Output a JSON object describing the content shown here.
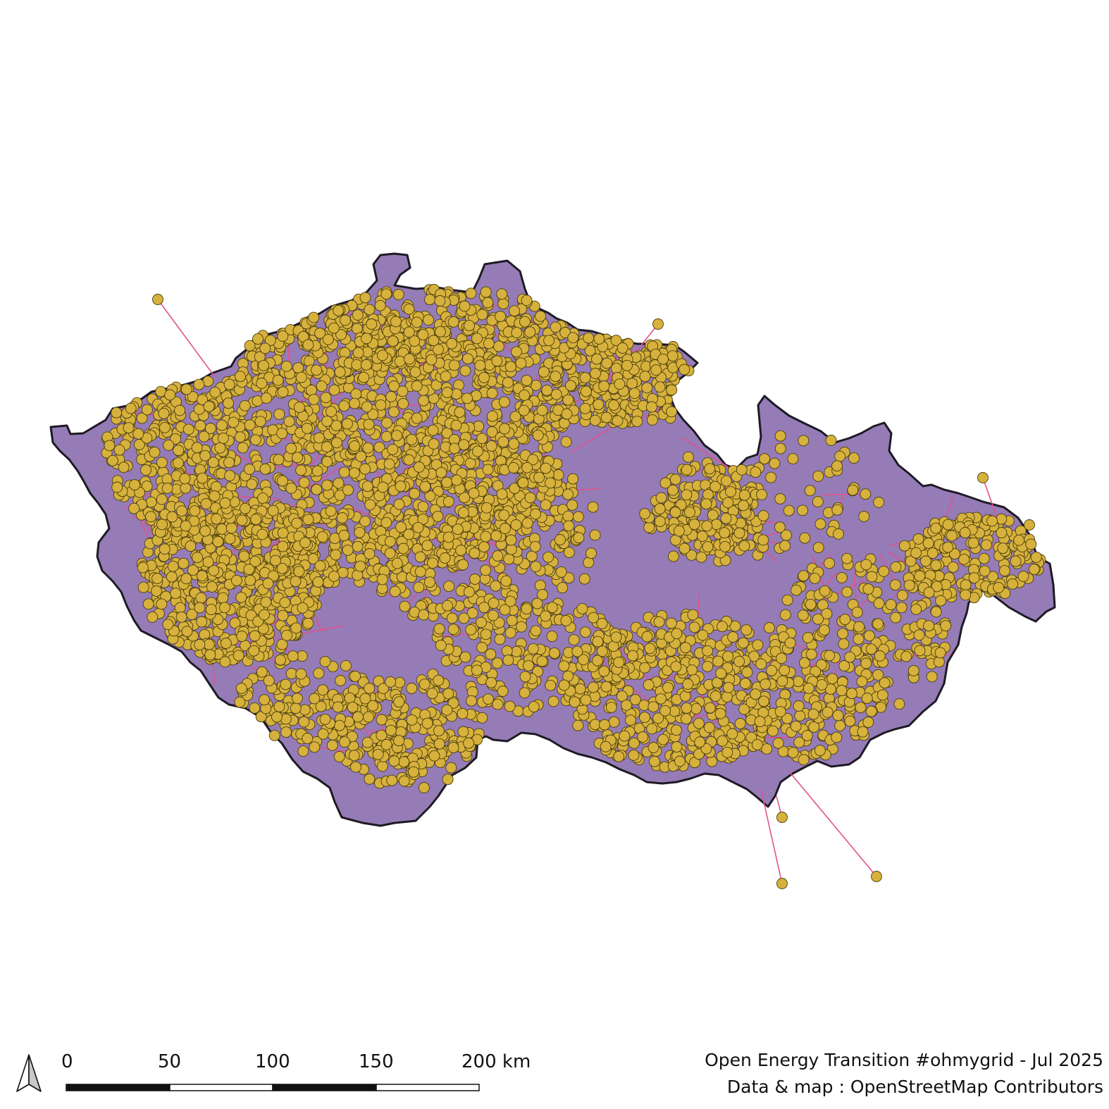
{
  "map": {
    "region": "Czech Republic",
    "colors": {
      "land": "#957cb6",
      "border": "#1e1a24",
      "substation_fill": "#d6b13c",
      "substation_stroke": "#4a3d10",
      "power_line": "#e0528f"
    }
  },
  "scale_bar": {
    "labels": [
      "0",
      "50",
      "100",
      "150",
      "200 km"
    ]
  },
  "north_arrow": {
    "icon": "north-arrow-icon"
  },
  "credits": {
    "line1": "Open Energy Transition #ohmygrid - Jul 2025",
    "line2": "Data & map : OpenStreetMap Contributors"
  }
}
